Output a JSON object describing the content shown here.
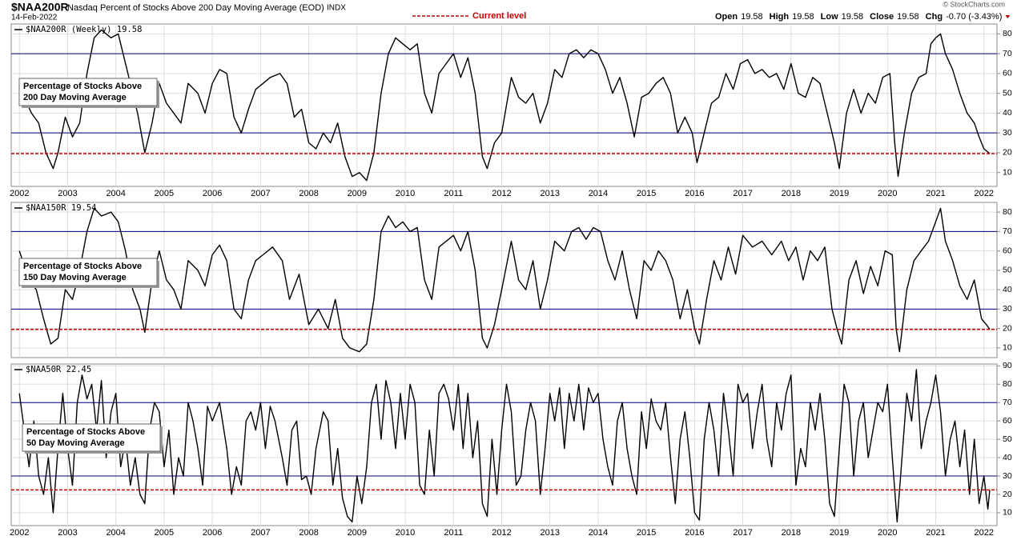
{
  "header": {
    "symbol": "$NAA200R",
    "description": "Nasdaq Percent of Stocks Above 200 Day Moving Average (EOD)",
    "exchange": "INDX",
    "date": "14-Feb-2022",
    "legend": "Current level",
    "quote": [
      {
        "label": "Open",
        "value": "19.58"
      },
      {
        "label": "High",
        "value": "19.58"
      },
      {
        "label": "Low",
        "value": "19.58"
      },
      {
        "label": "Close",
        "value": "19.58"
      },
      {
        "label": "Chg",
        "value": "-0.70 (-3.43%)"
      }
    ],
    "copyright": "© StockCharts.com"
  },
  "chart_data": [
    {
      "type": "line",
      "annotation": [
        "Percentage of Stocks Above",
        "200 Day Moving Average"
      ],
      "xlim": [
        2001.83,
        2022.27
      ],
      "xticks": [
        2002,
        2003,
        2004,
        2005,
        2006,
        2007,
        2008,
        2009,
        2010,
        2011,
        2012,
        2013,
        2014,
        2015,
        2016,
        2017,
        2018,
        2019,
        2020,
        2021,
        2022
      ],
      "ylim": [
        3,
        85
      ],
      "yticks": [
        10,
        20,
        30,
        40,
        50,
        60,
        70,
        80
      ],
      "grid": true,
      "hlines": [
        30,
        70
      ],
      "hline_color": "#000080",
      "current_level": 19.58,
      "current_color": "#c00000",
      "x": [
        2002.0,
        2002.1,
        2002.25,
        2002.4,
        2002.55,
        2002.7,
        2002.8,
        2002.95,
        2003.1,
        2003.25,
        2003.4,
        2003.55,
        2003.7,
        2003.9,
        2004.05,
        2004.15,
        2004.3,
        2004.45,
        2004.6,
        2004.75,
        2004.9,
        2005.05,
        2005.2,
        2005.35,
        2005.5,
        2005.7,
        2005.85,
        2006.0,
        2006.15,
        2006.3,
        2006.45,
        2006.6,
        2006.75,
        2006.9,
        2007.05,
        2007.2,
        2007.4,
        2007.55,
        2007.7,
        2007.85,
        2008.0,
        2008.15,
        2008.3,
        2008.45,
        2008.6,
        2008.75,
        2008.9,
        2009.05,
        2009.2,
        2009.35,
        2009.5,
        2009.65,
        2009.8,
        2009.95,
        2010.1,
        2010.25,
        2010.4,
        2010.55,
        2010.7,
        2010.85,
        2011.0,
        2011.15,
        2011.3,
        2011.45,
        2011.6,
        2011.7,
        2011.85,
        2012.0,
        2012.2,
        2012.35,
        2012.5,
        2012.65,
        2012.8,
        2012.95,
        2013.1,
        2013.25,
        2013.4,
        2013.55,
        2013.7,
        2013.85,
        2014.0,
        2014.15,
        2014.3,
        2014.45,
        2014.6,
        2014.75,
        2014.9,
        2015.05,
        2015.2,
        2015.35,
        2015.5,
        2015.65,
        2015.8,
        2015.95,
        2016.05,
        2016.2,
        2016.35,
        2016.5,
        2016.65,
        2016.8,
        2016.95,
        2017.1,
        2017.25,
        2017.4,
        2017.55,
        2017.7,
        2017.85,
        2018.0,
        2018.15,
        2018.3,
        2018.45,
        2018.6,
        2018.75,
        2018.9,
        2019.0,
        2019.15,
        2019.3,
        2019.45,
        2019.6,
        2019.75,
        2019.9,
        2020.05,
        2020.15,
        2020.22,
        2020.35,
        2020.5,
        2020.65,
        2020.8,
        2020.9,
        2021.0,
        2021.1,
        2021.2,
        2021.35,
        2021.5,
        2021.65,
        2021.8,
        2021.9,
        2022.0,
        2022.12
      ],
      "series": [
        {
          "name": "$NAA200R (Weekly) 19.58",
          "color": "#000000",
          "values": [
            55,
            48,
            40,
            35,
            20,
            12,
            20,
            38,
            28,
            35,
            60,
            78,
            82,
            78,
            80,
            70,
            55,
            40,
            20,
            35,
            55,
            45,
            40,
            35,
            55,
            50,
            40,
            55,
            62,
            60,
            38,
            30,
            42,
            52,
            55,
            58,
            60,
            55,
            38,
            42,
            25,
            22,
            30,
            25,
            35,
            18,
            8,
            10,
            6,
            20,
            50,
            70,
            78,
            75,
            72,
            75,
            50,
            40,
            60,
            65,
            70,
            58,
            68,
            50,
            18,
            12,
            25,
            30,
            58,
            48,
            45,
            50,
            35,
            45,
            62,
            58,
            70,
            72,
            68,
            72,
            70,
            62,
            50,
            58,
            45,
            28,
            48,
            50,
            55,
            58,
            50,
            30,
            38,
            30,
            15,
            30,
            45,
            48,
            60,
            52,
            65,
            67,
            60,
            62,
            58,
            60,
            52,
            65,
            50,
            48,
            58,
            55,
            40,
            25,
            12,
            40,
            52,
            40,
            50,
            45,
            58,
            60,
            25,
            8,
            30,
            50,
            58,
            60,
            75,
            78,
            80,
            70,
            62,
            50,
            40,
            35,
            28,
            22,
            19.58
          ]
        }
      ]
    },
    {
      "type": "line",
      "annotation": [
        "Percentage of Stocks Above",
        "150 Day Moving Average"
      ],
      "xlim": [
        2001.83,
        2022.27
      ],
      "xticks": [
        2002,
        2003,
        2004,
        2005,
        2006,
        2007,
        2008,
        2009,
        2010,
        2011,
        2012,
        2013,
        2014,
        2015,
        2016,
        2017,
        2018,
        2019,
        2020,
        2021,
        2022
      ],
      "ylim": [
        5,
        85
      ],
      "yticks": [
        10,
        20,
        30,
        40,
        50,
        60,
        70,
        80
      ],
      "grid": true,
      "hlines": [
        30,
        70
      ],
      "hline_color": "#000080",
      "current_level": 19.54,
      "current_color": "#c00000",
      "x": [
        2002.0,
        2002.2,
        2002.35,
        2002.5,
        2002.65,
        2002.8,
        2002.95,
        2003.1,
        2003.25,
        2003.4,
        2003.55,
        2003.7,
        2003.9,
        2004.05,
        2004.2,
        2004.35,
        2004.5,
        2004.6,
        2004.75,
        2004.9,
        2005.05,
        2005.2,
        2005.35,
        2005.5,
        2005.7,
        2005.85,
        2006.0,
        2006.15,
        2006.3,
        2006.45,
        2006.6,
        2006.75,
        2006.9,
        2007.05,
        2007.25,
        2007.45,
        2007.6,
        2007.8,
        2008.0,
        2008.2,
        2008.4,
        2008.55,
        2008.7,
        2008.85,
        2009.05,
        2009.2,
        2009.35,
        2009.5,
        2009.65,
        2009.8,
        2009.95,
        2010.1,
        2010.25,
        2010.4,
        2010.55,
        2010.7,
        2010.85,
        2011.0,
        2011.15,
        2011.3,
        2011.45,
        2011.6,
        2011.7,
        2011.85,
        2012.0,
        2012.2,
        2012.35,
        2012.5,
        2012.65,
        2012.8,
        2012.95,
        2013.1,
        2013.3,
        2013.45,
        2013.6,
        2013.75,
        2013.9,
        2014.05,
        2014.2,
        2014.35,
        2014.5,
        2014.65,
        2014.8,
        2014.95,
        2015.1,
        2015.25,
        2015.4,
        2015.55,
        2015.7,
        2015.85,
        2016.0,
        2016.1,
        2016.25,
        2016.4,
        2016.55,
        2016.7,
        2016.85,
        2017.0,
        2017.2,
        2017.4,
        2017.6,
        2017.8,
        2017.95,
        2018.1,
        2018.25,
        2018.4,
        2018.55,
        2018.7,
        2018.85,
        2018.95,
        2019.05,
        2019.2,
        2019.35,
        2019.5,
        2019.65,
        2019.8,
        2019.95,
        2020.1,
        2020.18,
        2020.25,
        2020.4,
        2020.55,
        2020.7,
        2020.85,
        2021.0,
        2021.1,
        2021.2,
        2021.35,
        2021.5,
        2021.65,
        2021.8,
        2021.95,
        2022.05,
        2022.12
      ],
      "series": [
        {
          "name": "$NAA150R 19.54",
          "color": "#000000",
          "values": [
            60,
            45,
            40,
            25,
            12,
            15,
            40,
            35,
            50,
            70,
            82,
            78,
            80,
            75,
            60,
            40,
            30,
            18,
            45,
            60,
            45,
            40,
            30,
            55,
            50,
            42,
            58,
            63,
            55,
            30,
            25,
            45,
            55,
            58,
            62,
            55,
            35,
            48,
            22,
            30,
            20,
            35,
            15,
            10,
            8,
            12,
            35,
            70,
            78,
            72,
            75,
            70,
            72,
            45,
            35,
            62,
            65,
            68,
            60,
            70,
            50,
            15,
            10,
            22,
            40,
            65,
            45,
            40,
            55,
            30,
            45,
            65,
            60,
            70,
            72,
            66,
            72,
            70,
            55,
            45,
            60,
            40,
            25,
            55,
            50,
            60,
            55,
            45,
            25,
            40,
            20,
            12,
            35,
            55,
            45,
            62,
            48,
            68,
            62,
            65,
            58,
            65,
            55,
            62,
            45,
            60,
            55,
            62,
            30,
            20,
            12,
            45,
            55,
            38,
            52,
            42,
            60,
            58,
            20,
            8,
            40,
            55,
            60,
            65,
            75,
            82,
            65,
            55,
            42,
            35,
            45,
            25,
            22,
            19.54
          ]
        }
      ]
    },
    {
      "type": "line",
      "annotation": [
        "Percentage of Stocks Above",
        "50 Day Moving Average"
      ],
      "xlim": [
        2001.83,
        2022.27
      ],
      "xticks": [
        2002,
        2003,
        2004,
        2005,
        2006,
        2007,
        2008,
        2009,
        2010,
        2011,
        2012,
        2013,
        2014,
        2015,
        2016,
        2017,
        2018,
        2019,
        2020,
        2021,
        2022
      ],
      "ylim": [
        3,
        91
      ],
      "yticks": [
        10,
        20,
        30,
        40,
        50,
        60,
        70,
        80,
        90
      ],
      "grid": true,
      "hlines": [
        30,
        70
      ],
      "hline_color": "#000080",
      "current_level": 22.45,
      "current_color": "#c00000",
      "x": [
        2002.0,
        2002.1,
        2002.2,
        2002.3,
        2002.4,
        2002.5,
        2002.6,
        2002.7,
        2002.8,
        2002.9,
        2003.0,
        2003.1,
        2003.2,
        2003.3,
        2003.4,
        2003.5,
        2003.6,
        2003.7,
        2003.8,
        2003.9,
        2004.0,
        2004.1,
        2004.2,
        2004.3,
        2004.4,
        2004.5,
        2004.6,
        2004.7,
        2004.8,
        2004.9,
        2005.0,
        2005.1,
        2005.2,
        2005.3,
        2005.4,
        2005.5,
        2005.6,
        2005.7,
        2005.8,
        2005.9,
        2006.0,
        2006.15,
        2006.3,
        2006.4,
        2006.5,
        2006.6,
        2006.7,
        2006.8,
        2006.9,
        2007.0,
        2007.1,
        2007.2,
        2007.3,
        2007.45,
        2007.55,
        2007.65,
        2007.75,
        2007.85,
        2007.95,
        2008.05,
        2008.15,
        2008.3,
        2008.4,
        2008.5,
        2008.6,
        2008.7,
        2008.8,
        2008.9,
        2009.0,
        2009.1,
        2009.2,
        2009.3,
        2009.4,
        2009.5,
        2009.6,
        2009.7,
        2009.8,
        2009.9,
        2010.0,
        2010.1,
        2010.2,
        2010.3,
        2010.4,
        2010.5,
        2010.6,
        2010.7,
        2010.8,
        2010.9,
        2011.0,
        2011.1,
        2011.2,
        2011.3,
        2011.4,
        2011.5,
        2011.6,
        2011.7,
        2011.8,
        2011.9,
        2012.0,
        2012.1,
        2012.2,
        2012.3,
        2012.4,
        2012.5,
        2012.6,
        2012.7,
        2012.8,
        2012.9,
        2013.0,
        2013.1,
        2013.2,
        2013.3,
        2013.4,
        2013.5,
        2013.6,
        2013.7,
        2013.8,
        2013.9,
        2014.0,
        2014.1,
        2014.2,
        2014.3,
        2014.4,
        2014.5,
        2014.6,
        2014.7,
        2014.8,
        2014.9,
        2015.0,
        2015.1,
        2015.2,
        2015.3,
        2015.4,
        2015.5,
        2015.6,
        2015.7,
        2015.8,
        2015.9,
        2016.0,
        2016.1,
        2016.2,
        2016.3,
        2016.4,
        2016.5,
        2016.6,
        2016.7,
        2016.8,
        2016.9,
        2017.0,
        2017.1,
        2017.2,
        2017.3,
        2017.4,
        2017.5,
        2017.6,
        2017.7,
        2017.8,
        2017.9,
        2018.0,
        2018.1,
        2018.2,
        2018.3,
        2018.4,
        2018.5,
        2018.6,
        2018.7,
        2018.8,
        2018.9,
        2019.0,
        2019.1,
        2019.2,
        2019.3,
        2019.4,
        2019.5,
        2019.6,
        2019.7,
        2019.8,
        2019.9,
        2020.0,
        2020.1,
        2020.2,
        2020.3,
        2020.4,
        2020.5,
        2020.6,
        2020.7,
        2020.8,
        2020.9,
        2021.0,
        2021.1,
        2021.2,
        2021.3,
        2021.4,
        2021.5,
        2021.6,
        2021.7,
        2021.8,
        2021.9,
        2022.0,
        2022.08,
        2022.12
      ],
      "series": [
        {
          "name": "$NAA50R 22.45",
          "color": "#000000",
          "values": [
            75,
            55,
            35,
            60,
            30,
            20,
            40,
            10,
            45,
            75,
            45,
            25,
            70,
            85,
            72,
            80,
            55,
            82,
            40,
            65,
            75,
            35,
            50,
            25,
            40,
            20,
            15,
            55,
            70,
            65,
            35,
            55,
            20,
            40,
            30,
            70,
            60,
            45,
            25,
            68,
            60,
            70,
            45,
            20,
            35,
            25,
            60,
            65,
            55,
            70,
            45,
            68,
            60,
            40,
            25,
            55,
            60,
            28,
            30,
            20,
            45,
            65,
            60,
            25,
            45,
            18,
            8,
            5,
            30,
            15,
            35,
            70,
            80,
            50,
            82,
            70,
            45,
            75,
            50,
            80,
            70,
            25,
            20,
            55,
            30,
            75,
            80,
            72,
            55,
            80,
            45,
            75,
            40,
            60,
            15,
            8,
            50,
            20,
            55,
            80,
            65,
            25,
            30,
            55,
            70,
            60,
            20,
            45,
            75,
            60,
            78,
            45,
            75,
            60,
            80,
            55,
            78,
            70,
            75,
            50,
            35,
            25,
            60,
            70,
            45,
            30,
            20,
            65,
            45,
            72,
            60,
            55,
            70,
            40,
            15,
            50,
            65,
            40,
            10,
            6,
            50,
            70,
            55,
            30,
            75,
            55,
            30,
            80,
            70,
            75,
            45,
            65,
            80,
            50,
            35,
            70,
            55,
            75,
            85,
            25,
            45,
            35,
            70,
            55,
            75,
            50,
            15,
            8,
            45,
            80,
            70,
            30,
            60,
            70,
            40,
            55,
            70,
            65,
            80,
            40,
            5,
            40,
            75,
            60,
            88,
            45,
            60,
            70,
            85,
            65,
            30,
            50,
            60,
            35,
            55,
            20,
            50,
            15,
            30,
            12,
            22.45
          ]
        }
      ]
    }
  ]
}
